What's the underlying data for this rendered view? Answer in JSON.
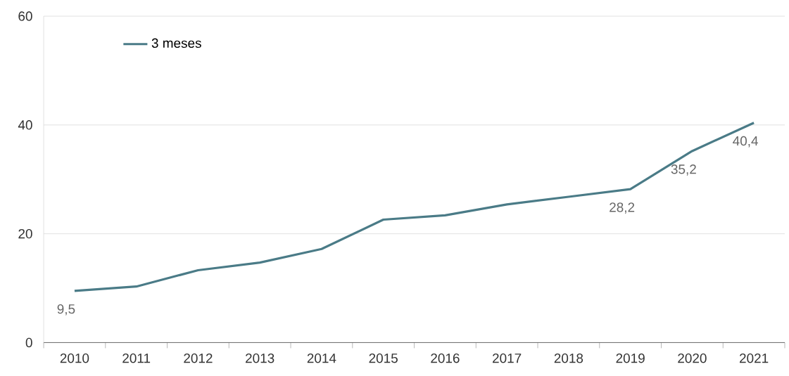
{
  "chart_data": {
    "type": "line",
    "categories": [
      "2010",
      "2011",
      "2012",
      "2013",
      "2014",
      "2015",
      "2016",
      "2017",
      "2018",
      "2019",
      "2020",
      "2021"
    ],
    "series": [
      {
        "name": "3 meses",
        "color": "#4a7b87",
        "values": [
          9.5,
          10.3,
          13.3,
          14.7,
          17.2,
          22.6,
          23.4,
          25.4,
          26.8,
          28.2,
          35.2,
          40.4
        ],
        "value_labels": [
          "9,5",
          null,
          null,
          null,
          null,
          null,
          null,
          null,
          null,
          "28,2",
          "35,2",
          "40,4"
        ]
      }
    ],
    "ylim": [
      0,
      60
    ],
    "yticks": [
      0,
      20,
      40,
      60
    ],
    "grid": "y",
    "legend": "top left",
    "marker": "none",
    "line_style": "solid"
  }
}
